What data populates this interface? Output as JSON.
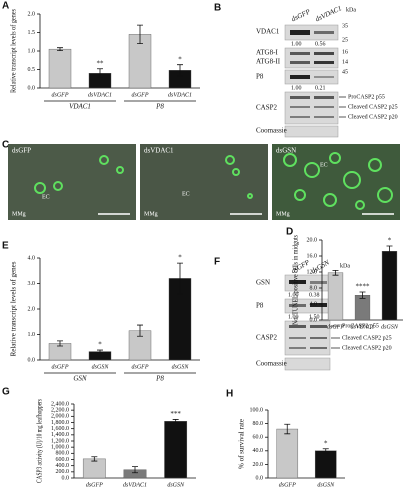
{
  "chart_data": [
    {
      "type": "bar",
      "panel": "A",
      "ylabel": "Relative transcript levels of genes",
      "categories": [
        "dsGFP",
        "dsVDAC1",
        "dsGFP",
        "dsVDAC1"
      ],
      "groups": [
        "VDAC1",
        "P8"
      ],
      "values": [
        1.05,
        0.4,
        1.45,
        0.48
      ],
      "errors": [
        0.04,
        0.12,
        0.25,
        0.15
      ],
      "annotations": [
        null,
        "**",
        null,
        "*"
      ],
      "colors": [
        "#c8c8c8",
        "#111111",
        "#c8c8c8",
        "#111111"
      ],
      "ylim": [
        0,
        2
      ],
      "yticks": [
        {
          "value": 0,
          "label": "0.0"
        },
        {
          "value": 0.5,
          "label": "0.5"
        },
        {
          "value": 1,
          "label": "1.0"
        },
        {
          "value": 1.5,
          "label": "1.5"
        },
        {
          "value": 2,
          "label": "2.0"
        }
      ]
    },
    {
      "type": "bar",
      "panel": "D",
      "ylabel": "No. TUNEL-positive cells in midguts",
      "categories": [
        "dsGFP",
        "dsVDAC1",
        "dsGSN"
      ],
      "values": [
        11.8,
        6.2,
        17.2
      ],
      "errors": [
        0.6,
        0.8,
        1.3
      ],
      "annotations": [
        null,
        "****",
        "*"
      ],
      "colors": [
        "#c8c8c8",
        "#7a7a7a",
        "#111111"
      ],
      "ylim": [
        0,
        20
      ],
      "yticks": [
        {
          "value": 0,
          "label": "0.0"
        },
        {
          "value": 4,
          "label": "4.0"
        },
        {
          "value": 8,
          "label": "8.0"
        },
        {
          "value": 12,
          "label": "12.0"
        },
        {
          "value": 16,
          "label": "16.0"
        },
        {
          "value": 20,
          "label": "20.0"
        }
      ]
    },
    {
      "type": "bar",
      "panel": "E",
      "ylabel": "Relative transcript levels of genes",
      "categories": [
        "dsGFP",
        "dsGSN",
        "dsGFP",
        "dsGSN"
      ],
      "groups": [
        "GSN",
        "P8"
      ],
      "values": [
        0.65,
        0.33,
        1.15,
        3.2
      ],
      "errors": [
        0.1,
        0.06,
        0.22,
        0.6
      ],
      "annotations": [
        null,
        "*",
        null,
        "*"
      ],
      "colors": [
        "#c8c8c8",
        "#111111",
        "#c8c8c8",
        "#111111"
      ],
      "ylim": [
        0,
        4
      ],
      "yticks": [
        {
          "value": 0,
          "label": "0.0"
        },
        {
          "value": 1,
          "label": "1.0"
        },
        {
          "value": 2,
          "label": "2.0"
        },
        {
          "value": 3,
          "label": "3.0"
        },
        {
          "value": 4,
          "label": "4.0"
        }
      ]
    },
    {
      "type": "bar",
      "panel": "G",
      "ylabel": "CASP3 activity (U)/10 mg leafhoppers",
      "categories": [
        "dsGFP",
        "dsVDAC1",
        "dsGSN"
      ],
      "values": [
        620,
        270,
        1840
      ],
      "errors": [
        70,
        100,
        60
      ],
      "annotations": [
        null,
        null,
        "***"
      ],
      "colors": [
        "#c8c8c8",
        "#7a7a7a",
        "#111111"
      ],
      "ylim": [
        0,
        2400
      ],
      "yticks": [
        {
          "value": 0,
          "label": "0.0"
        },
        {
          "value": 200,
          "label": "200.0"
        },
        {
          "value": 400,
          "label": "400.0"
        },
        {
          "value": 600,
          "label": "600.0"
        },
        {
          "value": 800,
          "label": "800.0"
        },
        {
          "value": 1000,
          "label": "1,000.0"
        },
        {
          "value": 1200,
          "label": "1,200.0"
        },
        {
          "value": 1400,
          "label": "1,400.0"
        },
        {
          "value": 1600,
          "label": "1,600.0"
        },
        {
          "value": 1800,
          "label": "1,800.0"
        },
        {
          "value": 2000,
          "label": "2,000.0"
        },
        {
          "value": 2200,
          "label": "2,200.0"
        },
        {
          "value": 2400,
          "label": "2,400.0"
        }
      ]
    },
    {
      "type": "bar",
      "panel": "H",
      "ylabel": "% of survival rate",
      "categories": [
        "dsGFP",
        "dsGSN"
      ],
      "values": [
        72,
        40
      ],
      "errors": [
        7,
        3
      ],
      "annotations": [
        null,
        "*"
      ],
      "colors": [
        "#c8c8c8",
        "#111111"
      ],
      "ylim": [
        0,
        100
      ],
      "yticks": [
        {
          "value": 0,
          "label": "0.0"
        },
        {
          "value": 20,
          "label": "20.0"
        },
        {
          "value": 40,
          "label": "40.0"
        },
        {
          "value": 60,
          "label": "60.0"
        },
        {
          "value": 80,
          "label": "80.0"
        },
        {
          "value": 100,
          "label": "100.0"
        }
      ]
    }
  ],
  "blot_b": {
    "panel": "B",
    "lanes": [
      "dsGFP",
      "dsVDAC1"
    ],
    "unit": "kDa",
    "rows": [
      "VDAC1",
      "ATG8-I",
      "ATG8-II",
      "P8",
      "CASP2",
      "Coomassie"
    ],
    "markers": [
      "35",
      "25",
      "16",
      "14",
      "45"
    ],
    "ratios": [
      "1.00",
      "0.56",
      "1.00",
      "0.21"
    ],
    "bands": [
      "ProCASP2 p55",
      "Cleaved CASP2 p25",
      "Cleaved CASP2 p20"
    ]
  },
  "micrographs": {
    "panel": "C",
    "titles": [
      "dsGFP",
      "dsVDAC1",
      "dsGSN"
    ],
    "cell_label": "EC",
    "region_label": "MMg"
  },
  "blot_f": {
    "panel": "F",
    "lanes": [
      "dsGFP",
      "dsGSN"
    ],
    "unit": "kDa",
    "rows": [
      "GSN",
      "P8",
      "CASP2",
      "Coomassie"
    ],
    "markers": [
      "100",
      "75",
      "45"
    ],
    "ratios": [
      "1.00",
      "0.38",
      "1.00",
      "1.50"
    ],
    "bands": [
      "ProCASP2 p55",
      "Cleaved CASP2 p25",
      "Cleaved CASP2 p20"
    ]
  }
}
